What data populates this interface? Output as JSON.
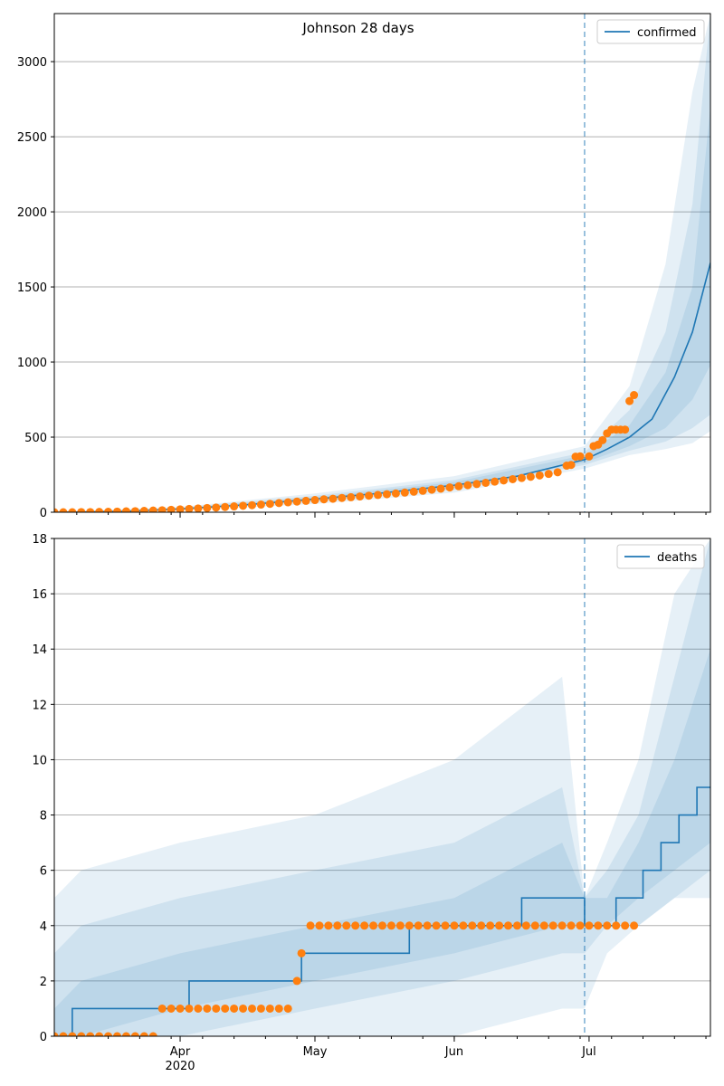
{
  "title": "Johnson 28 days",
  "colors": {
    "line": "#1f77b4",
    "observed": "#ff7f0e",
    "band": "#1f77b4",
    "grid": "#b0b0b0",
    "divider": "#1f77b4"
  },
  "chart_data": [
    {
      "type": "line",
      "name": "confirmed",
      "legend": "confirmed",
      "legend_position": "top-right",
      "ylim": [
        0,
        3320
      ],
      "yticks": [
        "0",
        "500",
        "1000",
        "1500",
        "2000",
        "2500",
        "3000"
      ],
      "ytick_values": [
        0,
        500,
        1000,
        1500,
        2000,
        2500,
        3000
      ],
      "grid": "horizontal",
      "xlim": [
        "2020-03-04",
        "2020-07-28"
      ],
      "forecast_start": "2020-06-30",
      "median": [
        [
          "2020-03-04",
          0
        ],
        [
          "2020-03-20",
          6
        ],
        [
          "2020-04-01",
          22
        ],
        [
          "2020-04-15",
          48
        ],
        [
          "2020-05-01",
          88
        ],
        [
          "2020-05-15",
          125
        ],
        [
          "2020-06-01",
          180
        ],
        [
          "2020-06-15",
          240
        ],
        [
          "2020-06-30",
          350
        ],
        [
          "2020-07-05",
          420
        ],
        [
          "2020-07-10",
          500
        ],
        [
          "2020-07-15",
          620
        ],
        [
          "2020-07-20",
          900
        ],
        [
          "2020-07-24",
          1200
        ],
        [
          "2020-07-28",
          1660
        ]
      ],
      "bands": [
        {
          "x": [
            "2020-03-04",
            "2020-04-01",
            "2020-05-01",
            "2020-06-01",
            "2020-06-30",
            "2020-07-10",
            "2020-07-18",
            "2020-07-24",
            "2020-07-28"
          ],
          "low": [
            0,
            12,
            55,
            130,
            290,
            380,
            420,
            460,
            540
          ],
          "high": [
            0,
            35,
            125,
            240,
            440,
            840,
            1650,
            2800,
            3320
          ]
        },
        {
          "x": [
            "2020-03-04",
            "2020-04-01",
            "2020-05-01",
            "2020-06-01",
            "2020-06-30",
            "2020-07-10",
            "2020-07-18",
            "2020-07-24",
            "2020-07-28"
          ],
          "low": [
            0,
            16,
            70,
            150,
            315,
            410,
            470,
            560,
            650
          ],
          "high": [
            0,
            30,
            110,
            215,
            400,
            680,
            1200,
            2050,
            3320
          ]
        },
        {
          "x": [
            "2020-03-04",
            "2020-04-01",
            "2020-05-01",
            "2020-06-01",
            "2020-06-30",
            "2020-07-10",
            "2020-07-18",
            "2020-07-24",
            "2020-07-28"
          ],
          "low": [
            0,
            19,
            78,
            163,
            330,
            440,
            560,
            750,
            980
          ],
          "high": [
            0,
            26,
            100,
            200,
            380,
            580,
            930,
            1500,
            2700
          ]
        }
      ],
      "observed": [
        [
          "2020-03-04",
          0
        ],
        [
          "2020-03-06",
          0
        ],
        [
          "2020-03-08",
          0
        ],
        [
          "2020-03-10",
          1
        ],
        [
          "2020-03-12",
          1
        ],
        [
          "2020-03-14",
          2
        ],
        [
          "2020-03-16",
          3
        ],
        [
          "2020-03-18",
          4
        ],
        [
          "2020-03-20",
          6
        ],
        [
          "2020-03-22",
          7
        ],
        [
          "2020-03-24",
          9
        ],
        [
          "2020-03-26",
          11
        ],
        [
          "2020-03-28",
          13
        ],
        [
          "2020-03-30",
          16
        ],
        [
          "2020-04-01",
          19
        ],
        [
          "2020-04-03",
          22
        ],
        [
          "2020-04-05",
          25
        ],
        [
          "2020-04-07",
          28
        ],
        [
          "2020-04-09",
          31
        ],
        [
          "2020-04-11",
          35
        ],
        [
          "2020-04-13",
          39
        ],
        [
          "2020-04-15",
          43
        ],
        [
          "2020-04-17",
          47
        ],
        [
          "2020-04-19",
          51
        ],
        [
          "2020-04-21",
          56
        ],
        [
          "2020-04-23",
          61
        ],
        [
          "2020-04-25",
          66
        ],
        [
          "2020-04-27",
          71
        ],
        [
          "2020-04-29",
          76
        ],
        [
          "2020-05-01",
          81
        ],
        [
          "2020-05-03",
          86
        ],
        [
          "2020-05-05",
          90
        ],
        [
          "2020-05-07",
          95
        ],
        [
          "2020-05-09",
          100
        ],
        [
          "2020-05-11",
          105
        ],
        [
          "2020-05-13",
          110
        ],
        [
          "2020-05-15",
          115
        ],
        [
          "2020-05-17",
          120
        ],
        [
          "2020-05-19",
          125
        ],
        [
          "2020-05-21",
          131
        ],
        [
          "2020-05-23",
          137
        ],
        [
          "2020-05-25",
          143
        ],
        [
          "2020-05-27",
          150
        ],
        [
          "2020-05-29",
          157
        ],
        [
          "2020-05-31",
          165
        ],
        [
          "2020-06-02",
          173
        ],
        [
          "2020-06-04",
          180
        ],
        [
          "2020-06-06",
          188
        ],
        [
          "2020-06-08",
          196
        ],
        [
          "2020-06-10",
          204
        ],
        [
          "2020-06-12",
          212
        ],
        [
          "2020-06-14",
          220
        ],
        [
          "2020-06-16",
          228
        ],
        [
          "2020-06-18",
          236
        ],
        [
          "2020-06-20",
          245
        ],
        [
          "2020-06-22",
          255
        ],
        [
          "2020-06-24",
          266
        ],
        [
          "2020-06-26",
          310
        ],
        [
          "2020-06-27",
          315
        ],
        [
          "2020-06-28",
          370
        ],
        [
          "2020-06-29",
          372
        ],
        [
          "2020-07-01",
          372
        ],
        [
          "2020-07-02",
          440
        ],
        [
          "2020-07-03",
          450
        ],
        [
          "2020-07-04",
          480
        ],
        [
          "2020-07-05",
          525
        ],
        [
          "2020-07-06",
          550
        ],
        [
          "2020-07-07",
          550
        ],
        [
          "2020-07-08",
          550
        ],
        [
          "2020-07-09",
          550
        ],
        [
          "2020-07-10",
          740
        ],
        [
          "2020-07-11",
          780
        ]
      ]
    },
    {
      "type": "line",
      "name": "deaths",
      "legend": "deaths",
      "legend_position": "top-right",
      "ylim": [
        0,
        18
      ],
      "yticks": [
        "0",
        "2",
        "4",
        "6",
        "8",
        "10",
        "12",
        "14",
        "16",
        "18"
      ],
      "ytick_values": [
        0,
        2,
        4,
        6,
        8,
        10,
        12,
        14,
        16,
        18
      ],
      "grid": "horizontal",
      "xlim": [
        "2020-03-04",
        "2020-07-28"
      ],
      "xticks": [
        "Apr",
        "May",
        "Jun",
        "Jul"
      ],
      "xtick_dates": [
        "2020-04-01",
        "2020-05-01",
        "2020-06-01",
        "2020-07-01"
      ],
      "xtick_sublabel": "2020",
      "forecast_start": "2020-06-30",
      "median": [
        [
          "2020-03-04",
          0
        ],
        [
          "2020-03-08",
          0
        ],
        [
          "2020-03-08",
          1
        ],
        [
          "2020-04-03",
          1
        ],
        [
          "2020-04-03",
          2
        ],
        [
          "2020-04-28",
          2
        ],
        [
          "2020-04-28",
          3
        ],
        [
          "2020-05-22",
          3
        ],
        [
          "2020-05-22",
          4
        ],
        [
          "2020-06-16",
          4
        ],
        [
          "2020-06-16",
          5
        ],
        [
          "2020-06-30",
          5
        ],
        [
          "2020-06-30",
          4
        ],
        [
          "2020-07-07",
          4
        ],
        [
          "2020-07-07",
          5
        ],
        [
          "2020-07-13",
          5
        ],
        [
          "2020-07-13",
          6
        ],
        [
          "2020-07-17",
          6
        ],
        [
          "2020-07-17",
          7
        ],
        [
          "2020-07-21",
          7
        ],
        [
          "2020-07-21",
          8
        ],
        [
          "2020-07-25",
          8
        ],
        [
          "2020-07-25",
          9
        ],
        [
          "2020-07-28",
          9
        ]
      ],
      "bands": [
        {
          "x": [
            "2020-03-04",
            "2020-03-10",
            "2020-04-01",
            "2020-05-01",
            "2020-06-01",
            "2020-06-25",
            "2020-06-30",
            "2020-07-05",
            "2020-07-12",
            "2020-07-20",
            "2020-07-28"
          ],
          "low": [
            0,
            0,
            0,
            0,
            0,
            1,
            1,
            3,
            4,
            5,
            5
          ],
          "high": [
            5,
            6,
            7,
            8,
            10,
            13,
            5,
            7,
            10,
            16,
            18
          ]
        },
        {
          "x": [
            "2020-03-04",
            "2020-03-10",
            "2020-04-01",
            "2020-05-01",
            "2020-06-01",
            "2020-06-25",
            "2020-06-30",
            "2020-07-05",
            "2020-07-12",
            "2020-07-20",
            "2020-07-28"
          ],
          "low": [
            0,
            0,
            0,
            1,
            2,
            3,
            3,
            4,
            4,
            5,
            6
          ],
          "high": [
            3,
            4,
            5,
            6,
            7,
            9,
            5,
            6,
            8,
            13,
            18
          ]
        },
        {
          "x": [
            "2020-03-04",
            "2020-03-10",
            "2020-04-01",
            "2020-05-01",
            "2020-06-01",
            "2020-06-25",
            "2020-06-30",
            "2020-07-05",
            "2020-07-12",
            "2020-07-20",
            "2020-07-28"
          ],
          "low": [
            0,
            0,
            1,
            2,
            3,
            4,
            4,
            4,
            5,
            6,
            7
          ],
          "high": [
            1,
            2,
            3,
            4,
            5,
            7,
            5,
            5,
            7,
            10,
            14
          ]
        }
      ],
      "observed": [
        [
          "2020-03-04",
          0
        ],
        [
          "2020-03-06",
          0
        ],
        [
          "2020-03-08",
          0
        ],
        [
          "2020-03-10",
          0
        ],
        [
          "2020-03-12",
          0
        ],
        [
          "2020-03-14",
          0
        ],
        [
          "2020-03-16",
          0
        ],
        [
          "2020-03-18",
          0
        ],
        [
          "2020-03-20",
          0
        ],
        [
          "2020-03-22",
          0
        ],
        [
          "2020-03-24",
          0
        ],
        [
          "2020-03-26",
          0
        ],
        [
          "2020-03-28",
          1
        ],
        [
          "2020-03-30",
          1
        ],
        [
          "2020-04-01",
          1
        ],
        [
          "2020-04-03",
          1
        ],
        [
          "2020-04-05",
          1
        ],
        [
          "2020-04-07",
          1
        ],
        [
          "2020-04-09",
          1
        ],
        [
          "2020-04-11",
          1
        ],
        [
          "2020-04-13",
          1
        ],
        [
          "2020-04-15",
          1
        ],
        [
          "2020-04-17",
          1
        ],
        [
          "2020-04-19",
          1
        ],
        [
          "2020-04-21",
          1
        ],
        [
          "2020-04-23",
          1
        ],
        [
          "2020-04-25",
          1
        ],
        [
          "2020-04-27",
          2
        ],
        [
          "2020-04-28",
          3
        ],
        [
          "2020-04-30",
          4
        ],
        [
          "2020-05-02",
          4
        ],
        [
          "2020-05-04",
          4
        ],
        [
          "2020-05-06",
          4
        ],
        [
          "2020-05-08",
          4
        ],
        [
          "2020-05-10",
          4
        ],
        [
          "2020-05-12",
          4
        ],
        [
          "2020-05-14",
          4
        ],
        [
          "2020-05-16",
          4
        ],
        [
          "2020-05-18",
          4
        ],
        [
          "2020-05-20",
          4
        ],
        [
          "2020-05-22",
          4
        ],
        [
          "2020-05-24",
          4
        ],
        [
          "2020-05-26",
          4
        ],
        [
          "2020-05-28",
          4
        ],
        [
          "2020-05-30",
          4
        ],
        [
          "2020-06-01",
          4
        ],
        [
          "2020-06-03",
          4
        ],
        [
          "2020-06-05",
          4
        ],
        [
          "2020-06-07",
          4
        ],
        [
          "2020-06-09",
          4
        ],
        [
          "2020-06-11",
          4
        ],
        [
          "2020-06-13",
          4
        ],
        [
          "2020-06-15",
          4
        ],
        [
          "2020-06-17",
          4
        ],
        [
          "2020-06-19",
          4
        ],
        [
          "2020-06-21",
          4
        ],
        [
          "2020-06-23",
          4
        ],
        [
          "2020-06-25",
          4
        ],
        [
          "2020-06-27",
          4
        ],
        [
          "2020-06-29",
          4
        ],
        [
          "2020-07-01",
          4
        ],
        [
          "2020-07-03",
          4
        ],
        [
          "2020-07-05",
          4
        ],
        [
          "2020-07-07",
          4
        ],
        [
          "2020-07-09",
          4
        ],
        [
          "2020-07-11",
          4
        ]
      ]
    }
  ]
}
